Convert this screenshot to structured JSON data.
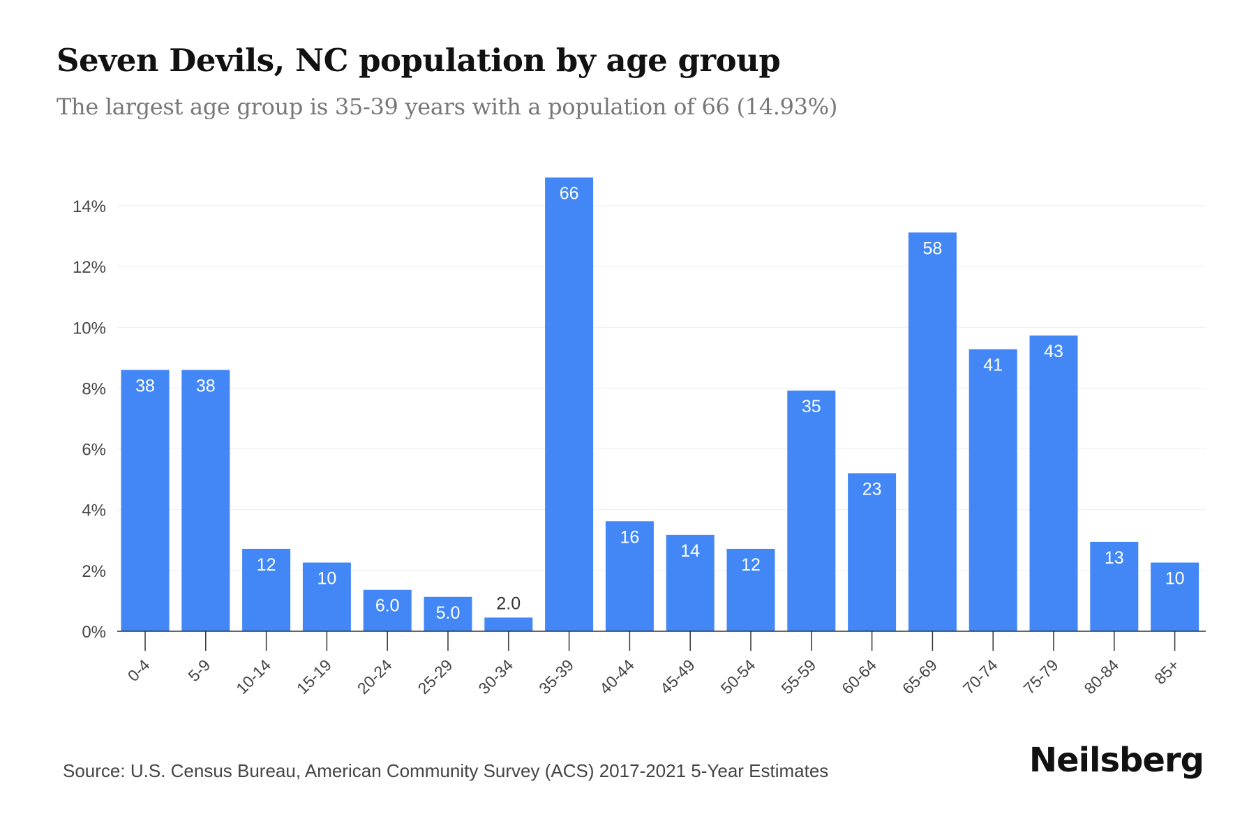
{
  "title": "Seven Devils, NC population by age group",
  "subtitle": "The largest age group is 35-39 years with a population of 66 (14.93%)",
  "source": "Source: U.S. Census Bureau, American Community Survey (ACS) 2017-2021 5-Year Estimates",
  "brand": "Neilsberg",
  "colors": {
    "bar": "#4287f5",
    "grid": "#eeeeee",
    "axis": "#333333",
    "tick_text": "#444444",
    "label_inside": "#ffffff",
    "label_outside": "#333333"
  },
  "chart_data": {
    "type": "bar",
    "categories": [
      "0-4",
      "5-9",
      "10-14",
      "15-19",
      "20-24",
      "25-29",
      "30-34",
      "35-39",
      "40-44",
      "45-49",
      "50-54",
      "55-59",
      "60-64",
      "65-69",
      "70-74",
      "75-79",
      "80-84",
      "85+"
    ],
    "values": [
      8.6,
      8.6,
      2.71,
      2.26,
      1.36,
      1.13,
      0.45,
      14.93,
      3.62,
      3.17,
      2.71,
      7.92,
      5.2,
      13.12,
      9.28,
      9.73,
      2.94,
      2.26
    ],
    "data_labels": [
      "38",
      "38",
      "12",
      "10",
      "6.0",
      "5.0",
      "2.0",
      "66",
      "16",
      "14",
      "12",
      "35",
      "23",
      "58",
      "41",
      "43",
      "13",
      "10"
    ],
    "yticks": [
      "0%",
      "2%",
      "4%",
      "6%",
      "8%",
      "10%",
      "12%",
      "14%"
    ],
    "ytick_values": [
      0,
      2,
      4,
      6,
      8,
      10,
      12,
      14
    ],
    "ylim": [
      0,
      15.2
    ],
    "grid": true,
    "legend": "none"
  }
}
